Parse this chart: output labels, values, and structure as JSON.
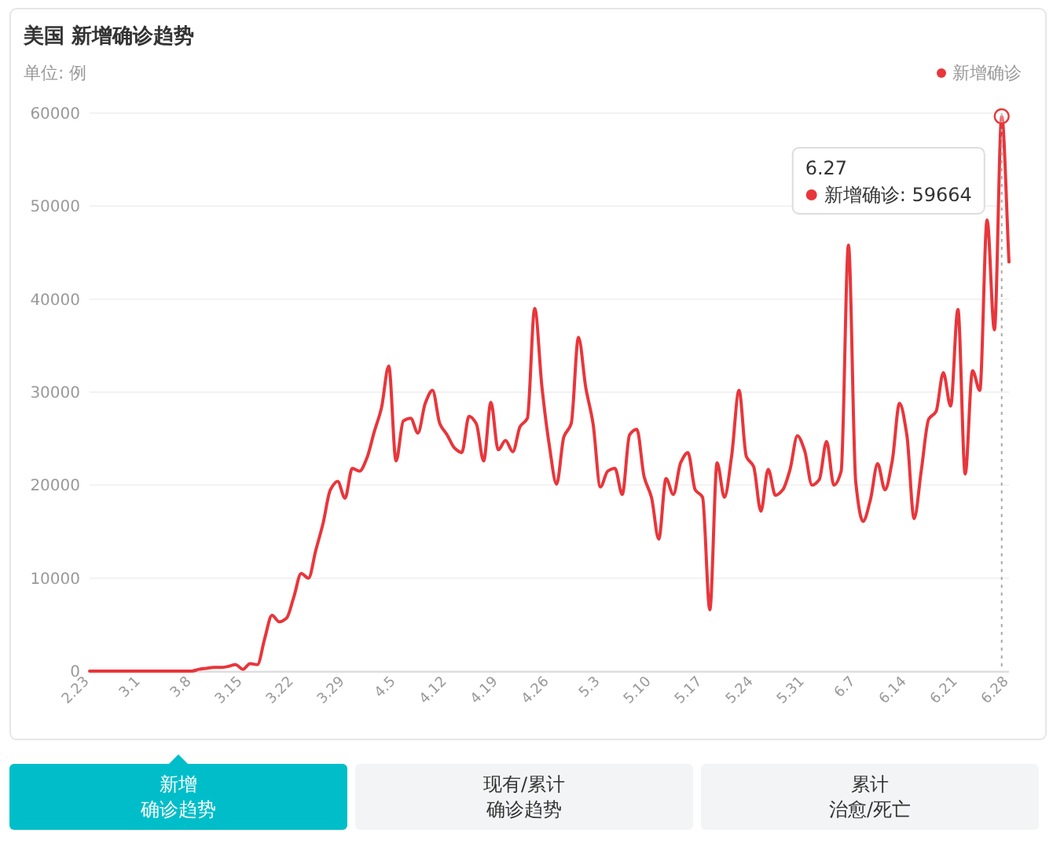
{
  "chart_data": {
    "type": "line",
    "title": "美国 新增确诊趋势",
    "ylabel": "单位: 例",
    "x": [
      "--02-23",
      "--02-24",
      "--02-25",
      "--02-26",
      "--02-27",
      "--02-28",
      "--02-29",
      "--03-01",
      "--03-02",
      "--03-03",
      "--03-04",
      "--03-05",
      "--03-06",
      "--03-07",
      "--03-08",
      "--03-09",
      "--03-10",
      "--03-11",
      "--03-12",
      "--03-13",
      "--03-14",
      "--03-15",
      "--03-16",
      "--03-17",
      "--03-18",
      "--03-19",
      "--03-20",
      "--03-21",
      "--03-22",
      "--03-23",
      "--03-24",
      "--03-25",
      "--03-26",
      "--03-27",
      "--03-28",
      "--03-29",
      "--03-30",
      "--03-31",
      "--04-01",
      "--04-02",
      "--04-03",
      "--04-04",
      "--04-05",
      "--04-06",
      "--04-07",
      "--04-08",
      "--04-09",
      "--04-10",
      "--04-11",
      "--04-12",
      "--04-13",
      "--04-14",
      "--04-15",
      "--04-16",
      "--04-17",
      "--04-18",
      "--04-19",
      "--04-20",
      "--04-21",
      "--04-22",
      "--04-23",
      "--04-24",
      "--04-25",
      "--04-26",
      "--04-27",
      "--04-28",
      "--04-29",
      "--04-30",
      "--05-01",
      "--05-02",
      "--05-03",
      "--05-04",
      "--05-05",
      "--05-06",
      "--05-07",
      "--05-08",
      "--05-09",
      "--05-10",
      "--05-11",
      "--05-12",
      "--05-13",
      "--05-14",
      "--05-15",
      "--05-16",
      "--05-17",
      "--05-18",
      "--05-19",
      "--05-20",
      "--05-21",
      "--05-22",
      "--05-23",
      "--05-24",
      "--05-25",
      "--05-26",
      "--05-27",
      "--05-28",
      "--05-29",
      "--05-30",
      "--05-31",
      "--06-01",
      "--06-02",
      "--06-03",
      "--06-04",
      "--06-05",
      "--06-06",
      "--06-07",
      "--06-08",
      "--06-09",
      "--06-10",
      "--06-11",
      "--06-12",
      "--06-13",
      "--06-14",
      "--06-15",
      "--06-16",
      "--06-17",
      "--06-18",
      "--06-19",
      "--06-20",
      "--06-21",
      "--06-22",
      "--06-23",
      "--06-24",
      "--06-25",
      "--06-26",
      "--06-27",
      "--06-28"
    ],
    "series": [
      {
        "name": "新增确诊",
        "color": "#e8363b",
        "values": [
          0,
          0,
          0,
          0,
          0,
          0,
          0,
          0,
          0,
          0,
          0,
          0,
          0,
          0,
          0,
          200,
          300,
          400,
          400,
          500,
          700,
          200,
          800,
          700,
          3500,
          6000,
          5300,
          5700,
          8000,
          10500,
          10000,
          13000,
          15900,
          19500,
          20400,
          18600,
          21800,
          21500,
          22900,
          25700,
          28300,
          32800,
          22600,
          26900,
          27200,
          25600,
          28800,
          30200,
          26600,
          25400,
          24000,
          23500,
          27400,
          26600,
          22600,
          28900,
          23800,
          24800,
          23600,
          26300,
          27200,
          39000,
          30500,
          24300,
          20100,
          25200,
          26600,
          35900,
          30500,
          26600,
          19800,
          21500,
          21800,
          19000,
          25400,
          26000,
          20900,
          18700,
          14200,
          20700,
          19000,
          22400,
          23500,
          19500,
          18700,
          6600,
          22400,
          18700,
          23200,
          30200,
          23100,
          22000,
          17200,
          21700,
          18900,
          19500,
          21700,
          25300,
          23700,
          20000,
          20600,
          24700,
          20000,
          21500,
          45800,
          20300,
          16100,
          18400,
          22300,
          19500,
          22600,
          28800,
          25400,
          16400,
          21700,
          27100,
          27900,
          32100,
          28500,
          38900,
          21200,
          32300,
          30200,
          48500,
          36700,
          59664,
          44000
        ]
      }
    ],
    "xlim": [
      "--02-23",
      "--06-28"
    ],
    "xticks": [
      {
        "value": "--02-23",
        "label": "2.23"
      },
      {
        "value": "--03-01",
        "label": "3.1"
      },
      {
        "value": "--03-08",
        "label": "3.8"
      },
      {
        "value": "--03-15",
        "label": "3.15"
      },
      {
        "value": "--03-22",
        "label": "3.22"
      },
      {
        "value": "--03-29",
        "label": "3.29"
      },
      {
        "value": "--04-05",
        "label": "4.5"
      },
      {
        "value": "--04-12",
        "label": "4.12"
      },
      {
        "value": "--04-19",
        "label": "4.19"
      },
      {
        "value": "--04-26",
        "label": "4.26"
      },
      {
        "value": "--05-03",
        "label": "5.3"
      },
      {
        "value": "--05-10",
        "label": "5.10"
      },
      {
        "value": "--05-17",
        "label": "5.17"
      },
      {
        "value": "--05-24",
        "label": "5.24"
      },
      {
        "value": "--05-31",
        "label": "5.31"
      },
      {
        "value": "--06-07",
        "label": "6.7"
      },
      {
        "value": "--06-14",
        "label": "6.14"
      },
      {
        "value": "--06-21",
        "label": "6.21"
      },
      {
        "value": "--06-28",
        "label": "6.28"
      }
    ],
    "ylim": [
      0,
      60000
    ],
    "yticks": [
      0,
      10000,
      20000,
      30000,
      40000,
      50000,
      60000
    ],
    "grid": "y",
    "ref_lines": [
      {
        "axis": "x",
        "value": "--06-27",
        "color": "#aaaaaa",
        "line_style": "dotted"
      }
    ],
    "legend": "top right",
    "annotations": [
      {
        "text": "6.27\n新增确诊: 59664",
        "x": "--06-27",
        "y": 59664
      },
      "新增",
      "确诊趋势",
      "现有/累计",
      "确诊趋势",
      "累计",
      "治愈/死亡"
    ]
  }
}
